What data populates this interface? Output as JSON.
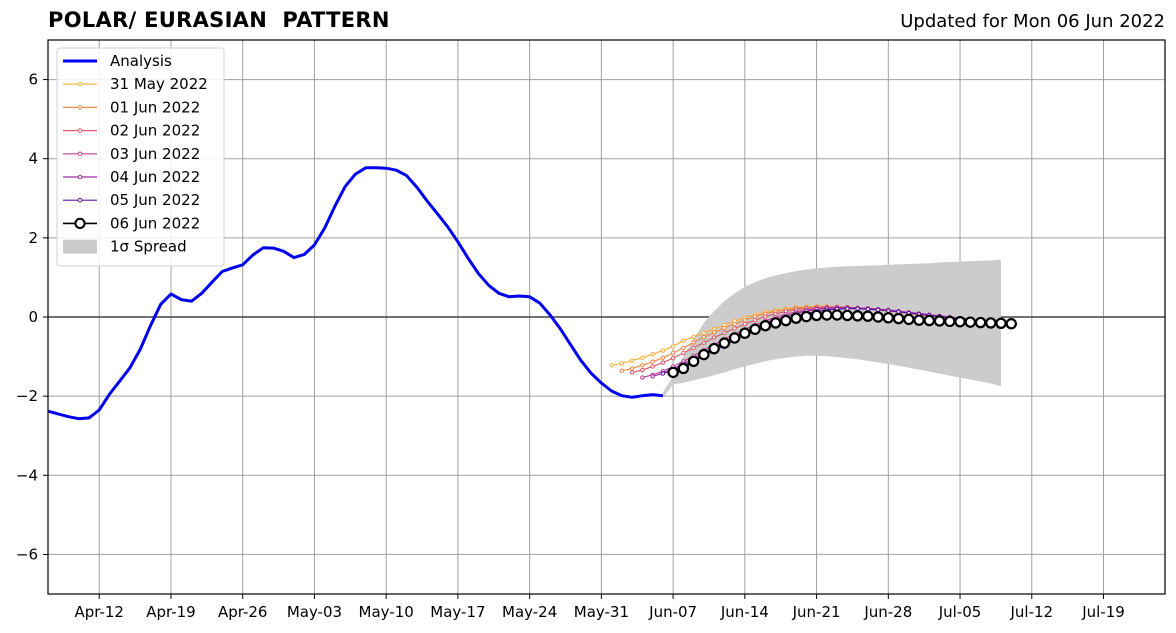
{
  "chart_data": {
    "type": "line",
    "title": "POLAR/ EURASIAN  PATTERN",
    "subtitle": "Updated for Mon 06 Jun 2022",
    "xlabel": "",
    "ylabel": "",
    "x_axis_type": "date",
    "xlim": [
      "2022-04-07",
      "2022-07-25"
    ],
    "ylim": [
      -7,
      7
    ],
    "x_ticks": [
      "2022-04-12",
      "2022-04-19",
      "2022-04-26",
      "2022-05-03",
      "2022-05-10",
      "2022-05-17",
      "2022-05-24",
      "2022-05-31",
      "2022-06-07",
      "2022-06-14",
      "2022-06-21",
      "2022-06-28",
      "2022-07-05",
      "2022-07-12",
      "2022-07-19"
    ],
    "x_tick_labels": [
      "Apr-12",
      "Apr-19",
      "Apr-26",
      "May-03",
      "May-10",
      "May-17",
      "May-24",
      "May-31",
      "Jun-07",
      "Jun-14",
      "Jun-21",
      "Jun-28",
      "Jul-05",
      "Jul-12",
      "Jul-19"
    ],
    "y_ticks": [
      6,
      4,
      2,
      0,
      -2,
      -4,
      -6
    ],
    "y_tick_labels": [
      "6",
      "4",
      "2",
      "0",
      "−2",
      "−4",
      "−6"
    ],
    "grid": true,
    "zero_line": true,
    "legend_position": "top-left",
    "legend": [
      "Analysis",
      "31 May 2022",
      "01 Jun 2022",
      "02 Jun 2022",
      "03 Jun 2022",
      "04 Jun 2022",
      "05 Jun 2022",
      "06 Jun 2022",
      "1σ Spread"
    ],
    "colors": {
      "analysis": "#0000ee",
      "spread": "#cccccc",
      "forecasts": [
        "#f7b03c",
        "#ef8a48",
        "#dc5c6a",
        "#c0429a",
        "#9a2aa8",
        "#5a17a0",
        "#000000"
      ]
    },
    "analysis": {
      "name": "Analysis",
      "start": "2022-04-07",
      "values": [
        -2.38,
        -2.45,
        -2.52,
        -2.57,
        -2.55,
        -2.35,
        -1.95,
        -1.62,
        -1.28,
        -0.82,
        -0.22,
        0.32,
        0.58,
        0.44,
        0.4,
        0.6,
        0.88,
        1.15,
        1.24,
        1.32,
        1.57,
        1.75,
        1.74,
        1.66,
        1.5,
        1.58,
        1.82,
        2.25,
        2.8,
        3.3,
        3.61,
        3.77,
        3.77,
        3.76,
        3.71,
        3.57,
        3.28,
        2.93,
        2.61,
        2.28,
        1.9,
        1.48,
        1.1,
        0.8,
        0.6,
        0.51,
        0.53,
        0.51,
        0.35,
        0.05,
        -0.3,
        -0.7,
        -1.1,
        -1.42,
        -1.67,
        -1.87,
        -1.99,
        -2.03,
        -1.99,
        -1.96,
        -1.99
      ]
    },
    "spread": {
      "name": "1σ Spread",
      "start": "2022-06-06",
      "upper": [
        -1.9,
        -1.5,
        -1.0,
        -0.55,
        -0.15,
        0.15,
        0.4,
        0.6,
        0.76,
        0.88,
        0.98,
        1.05,
        1.11,
        1.16,
        1.2,
        1.23,
        1.25,
        1.27,
        1.28,
        1.29,
        1.3,
        1.31,
        1.32,
        1.33,
        1.34,
        1.35,
        1.36,
        1.38,
        1.39,
        1.4,
        1.41,
        1.42,
        1.43,
        1.45
      ],
      "lower": [
        -2.05,
        -1.7,
        -1.66,
        -1.6,
        -1.54,
        -1.47,
        -1.4,
        -1.32,
        -1.25,
        -1.18,
        -1.12,
        -1.07,
        -1.03,
        -1.0,
        -0.98,
        -0.98,
        -0.99,
        -1.01,
        -1.04,
        -1.07,
        -1.11,
        -1.15,
        -1.19,
        -1.23,
        -1.28,
        -1.33,
        -1.38,
        -1.43,
        -1.48,
        -1.53,
        -1.58,
        -1.63,
        -1.68,
        -1.75
      ]
    },
    "series": [
      {
        "name": "31 May 2022",
        "start": "2022-06-01",
        "values": [
          -1.22,
          -1.17,
          -1.1,
          -1.03,
          -0.94,
          -0.85,
          -0.74,
          -0.6,
          -0.5,
          -0.4,
          -0.3,
          -0.2,
          -0.1,
          -0.02,
          0.06,
          0.12,
          0.17,
          0.21,
          0.24,
          0.26,
          0.27,
          0.27,
          0.26,
          0.25,
          0.23,
          0.21,
          0.18,
          0.15,
          0.12,
          0.09,
          0.06,
          0.03,
          0.0,
          -0.02
        ]
      },
      {
        "name": "01 Jun 2022",
        "start": "2022-06-02",
        "values": [
          -1.36,
          -1.3,
          -1.22,
          -1.13,
          -1.03,
          -0.91,
          -0.78,
          -0.64,
          -0.51,
          -0.39,
          -0.28,
          -0.18,
          -0.08,
          0.01,
          0.08,
          0.14,
          0.19,
          0.22,
          0.24,
          0.26,
          0.26,
          0.26,
          0.25,
          0.23,
          0.21,
          0.18,
          0.15,
          0.12,
          0.09,
          0.06,
          0.03,
          0.0,
          -0.02,
          -0.04
        ]
      },
      {
        "name": "02 Jun 2022",
        "start": "2022-06-03",
        "values": [
          -1.4,
          -1.34,
          -1.25,
          -1.15,
          -1.04,
          -0.91,
          -0.78,
          -0.65,
          -0.52,
          -0.4,
          -0.29,
          -0.18,
          -0.08,
          0.01,
          0.08,
          0.14,
          0.19,
          0.22,
          0.24,
          0.25,
          0.25,
          0.24,
          0.23,
          0.21,
          0.19,
          0.16,
          0.13,
          0.1,
          0.07,
          0.04,
          0.01,
          -0.02,
          -0.04
        ]
      },
      {
        "name": "03 Jun 2022",
        "start": "2022-06-04",
        "values": [
          -1.53,
          -1.46,
          -1.37,
          -1.25,
          -1.12,
          -0.98,
          -0.84,
          -0.7,
          -0.56,
          -0.43,
          -0.31,
          -0.2,
          -0.1,
          -0.01,
          0.07,
          0.13,
          0.18,
          0.21,
          0.23,
          0.24,
          0.24,
          0.23,
          0.22,
          0.2,
          0.18,
          0.15,
          0.12,
          0.09,
          0.06,
          0.03,
          0.0,
          -0.03,
          -0.05
        ]
      },
      {
        "name": "04 Jun 2022",
        "start": "2022-06-05",
        "values": [
          -1.5,
          -1.42,
          -1.31,
          -1.18,
          -1.05,
          -0.91,
          -0.77,
          -0.63,
          -0.5,
          -0.38,
          -0.26,
          -0.16,
          -0.06,
          0.02,
          0.09,
          0.15,
          0.19,
          0.22,
          0.23,
          0.23,
          0.22,
          0.21,
          0.19,
          0.17,
          0.14,
          0.11,
          0.08,
          0.05,
          0.02,
          -0.01,
          -0.03,
          -0.05
        ]
      },
      {
        "name": "05 Jun 2022",
        "start": "2022-06-06",
        "values": [
          -1.43,
          -1.34,
          -1.23,
          -1.11,
          -0.98,
          -0.85,
          -0.72,
          -0.59,
          -0.47,
          -0.35,
          -0.24,
          -0.14,
          -0.05,
          0.03,
          0.09,
          0.14,
          0.18,
          0.2,
          0.21,
          0.21,
          0.2,
          0.18,
          0.16,
          0.13,
          0.1,
          0.07,
          0.04,
          0.01,
          -0.02,
          -0.04,
          -0.06
        ]
      },
      {
        "name": "06 Jun 2022",
        "start": "2022-06-07",
        "values": [
          -1.4,
          -1.3,
          -1.12,
          -0.95,
          -0.8,
          -0.66,
          -0.53,
          -0.41,
          -0.31,
          -0.22,
          -0.15,
          -0.09,
          -0.03,
          0.01,
          0.04,
          0.05,
          0.05,
          0.04,
          0.03,
          0.02,
          0.0,
          -0.02,
          -0.04,
          -0.06,
          -0.08,
          -0.09,
          -0.1,
          -0.11,
          -0.12,
          -0.13,
          -0.14,
          -0.15,
          -0.16,
          -0.17
        ]
      }
    ]
  }
}
